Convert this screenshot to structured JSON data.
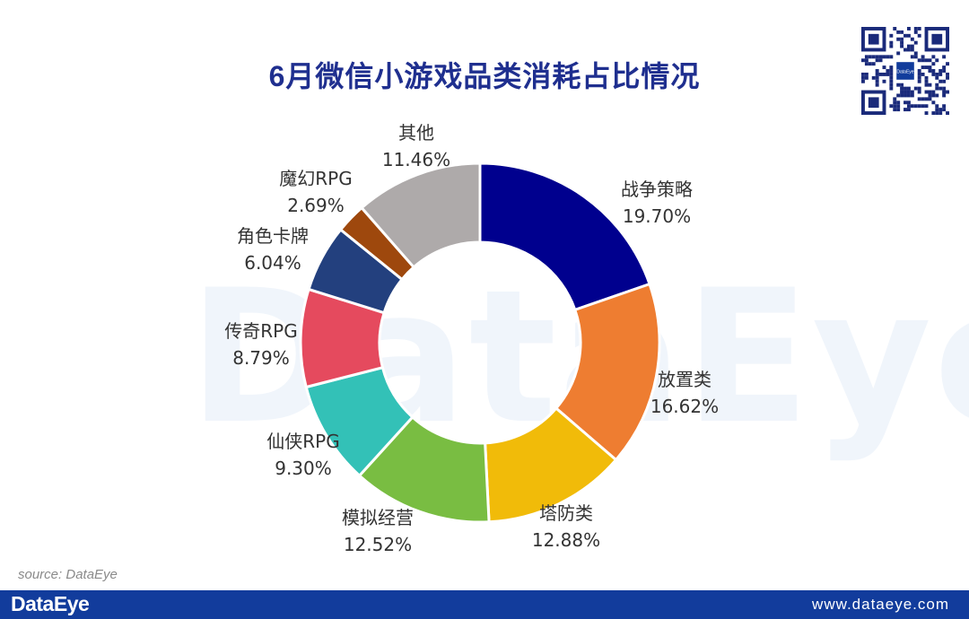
{
  "chart_data": {
    "type": "pie",
    "title": "6月微信小游戏品类消耗占比情况",
    "donut": true,
    "slices": [
      {
        "label": "战争策略",
        "value": 19.7,
        "value_label": "19.70%",
        "color": "#00008e"
      },
      {
        "label": "放置类",
        "value": 16.62,
        "value_label": "16.62%",
        "color": "#ee7d31"
      },
      {
        "label": "塔防类",
        "value": 12.88,
        "value_label": "12.88%",
        "color": "#f1bb09"
      },
      {
        "label": "模拟经营",
        "value": 12.52,
        "value_label": "12.52%",
        "color": "#79bd42"
      },
      {
        "label": "仙侠RPG",
        "value": 9.3,
        "value_label": "9.30%",
        "color": "#33c1b7"
      },
      {
        "label": "传奇RPG",
        "value": 8.79,
        "value_label": "8.79%",
        "color": "#e54a5e"
      },
      {
        "label": "角色卡牌",
        "value": 6.04,
        "value_label": "6.04%",
        "color": "#23407e"
      },
      {
        "label": "魔幻RPG",
        "value": 2.69,
        "value_label": "2.69%",
        "color": "#9e480d"
      },
      {
        "label": "其他",
        "value": 11.46,
        "value_label": "11.46%",
        "color": "#aeaaaa"
      }
    ]
  },
  "watermark": "DataEye",
  "source_note": "source: DataEye",
  "footer": {
    "logo": "DataEye",
    "url": "www.dataeye.com",
    "bar_color": "#123c9c"
  },
  "qr_code": {
    "icon": "qr-code-icon",
    "center_label": "DataEye"
  }
}
